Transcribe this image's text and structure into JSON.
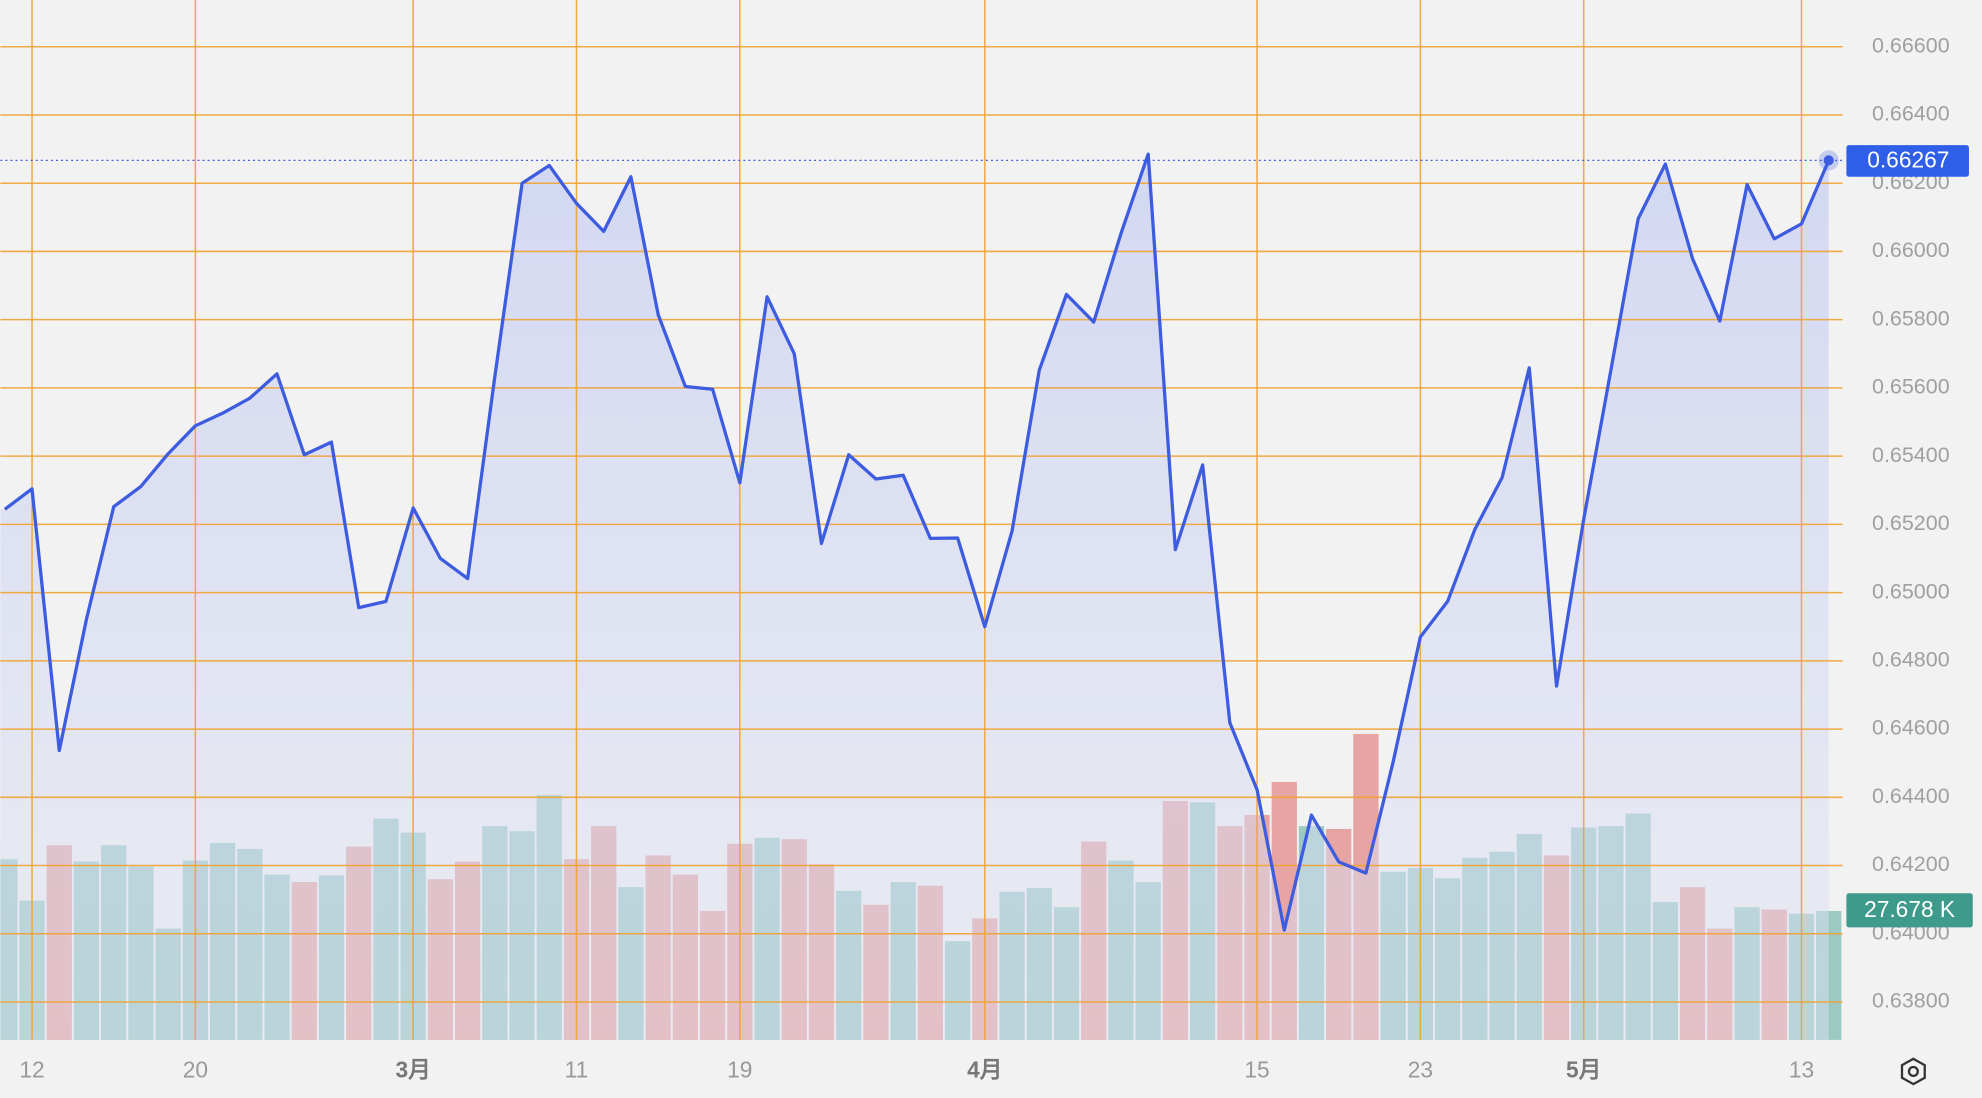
{
  "chart_data": {
    "type": "line",
    "categories": [
      null,
      "12",
      null,
      null,
      null,
      null,
      null,
      "20",
      null,
      null,
      null,
      null,
      null,
      null,
      null,
      "3月",
      null,
      null,
      null,
      null,
      null,
      "11",
      null,
      null,
      null,
      null,
      null,
      "19",
      null,
      null,
      null,
      null,
      null,
      null,
      null,
      null,
      "4月",
      null,
      null,
      null,
      null,
      null,
      null,
      null,
      null,
      null,
      "15",
      null,
      null,
      null,
      null,
      null,
      "23",
      null,
      null,
      null,
      null,
      null,
      "5月",
      null,
      null,
      null,
      null,
      null,
      null,
      null,
      "13",
      null
    ],
    "series": [
      {
        "name": "price",
        "color": "#3d5ce0",
        "values": [
          0.65244,
          0.65304,
          0.64537,
          0.64922,
          0.65252,
          0.65311,
          0.65407,
          0.65489,
          0.65526,
          0.6557,
          0.65641,
          0.65404,
          0.65441,
          0.64956,
          0.64974,
          0.65248,
          0.651,
          0.65041,
          0.65633,
          0.662,
          0.66252,
          0.66141,
          0.66059,
          0.66219,
          0.65815,
          0.65604,
          0.65596,
          0.65322,
          0.65867,
          0.657,
          0.65144,
          0.65404,
          0.65333,
          0.65344,
          0.65159,
          0.6516,
          0.649,
          0.65181,
          0.65652,
          0.65874,
          0.65793,
          0.66052,
          0.66285,
          0.65126,
          0.65374,
          0.64619,
          0.64422,
          0.64011,
          0.64348,
          0.64211,
          0.64178,
          0.64504,
          0.6487,
          0.64974,
          0.65185,
          0.65337,
          0.65659,
          0.64726,
          0.65215,
          0.65652,
          0.66096,
          0.66256,
          0.65978,
          0.65796,
          0.66196,
          0.66037,
          0.66081,
          0.66267
        ]
      },
      {
        "name": "volume",
        "axis": "y2",
        "up_color": "#9ccac3",
        "down_color": "#e6a5a2",
        "label_color": "#3e9a8b",
        "values": [
          38.8,
          29.9,
          41.8,
          38.3,
          41.8,
          37.2,
          23.9,
          38.5,
          42.3,
          41.0,
          35.5,
          33.9,
          35.3,
          41.5,
          47.5,
          44.5,
          34.5,
          38.3,
          45.9,
          44.8,
          52.6,
          38.8,
          45.9,
          32.8,
          39.6,
          35.5,
          27.7,
          42.1,
          43.4,
          43.1,
          37.7,
          32.0,
          29.0,
          33.9,
          33.1,
          21.2,
          26.1,
          31.8,
          32.6,
          28.5,
          42.6,
          38.5,
          33.9,
          51.3,
          51.0,
          45.9,
          48.3,
          55.4,
          45.9,
          45.3,
          65.7,
          36.1,
          36.9,
          34.7,
          39.1,
          40.4,
          44.2,
          39.6,
          45.6,
          45.9,
          48.6,
          29.6,
          32.8,
          23.9,
          28.5,
          28.0,
          27.1,
          27.678
        ],
        "value_labels": [
          null,
          null,
          null,
          null,
          null,
          null,
          null,
          null,
          null,
          null,
          null,
          null,
          null,
          null,
          null,
          null,
          null,
          null,
          null,
          null,
          null,
          null,
          null,
          null,
          null,
          null,
          null,
          null,
          null,
          null,
          null,
          null,
          null,
          null,
          null,
          null,
          null,
          null,
          null,
          null,
          null,
          null,
          null,
          null,
          null,
          null,
          null,
          null,
          null,
          null,
          null,
          null,
          null,
          null,
          null,
          null,
          null,
          null,
          null,
          null,
          null,
          null,
          null,
          null,
          null,
          null,
          null,
          "27.678 K"
        ]
      }
    ],
    "ylim": [
      0.66737,
      0.63689
    ],
    "yticks": [
      {
        "value": 0.666,
        "label": "0.66600"
      },
      {
        "value": 0.664,
        "label": "0.66400"
      },
      {
        "value": 0.662,
        "label": "0.66200"
      },
      {
        "value": 0.66,
        "label": "0.66000"
      },
      {
        "value": 0.658,
        "label": "0.65800"
      },
      {
        "value": 0.656,
        "label": "0.65600"
      },
      {
        "value": 0.654,
        "label": "0.65400"
      },
      {
        "value": 0.652,
        "label": "0.65200"
      },
      {
        "value": 0.65,
        "label": "0.65000"
      },
      {
        "value": 0.648,
        "label": "0.64800"
      },
      {
        "value": 0.646,
        "label": "0.64600"
      },
      {
        "value": 0.644,
        "label": "0.64400"
      },
      {
        "value": 0.642,
        "label": "0.64200"
      },
      {
        "value": 0.64,
        "label": "0.64000"
      },
      {
        "value": 0.638,
        "label": "0.63800"
      }
    ],
    "y2lim": [
      0,
      223.3
    ],
    "grid": true,
    "grid_color": "#f0a232"
  }
}
